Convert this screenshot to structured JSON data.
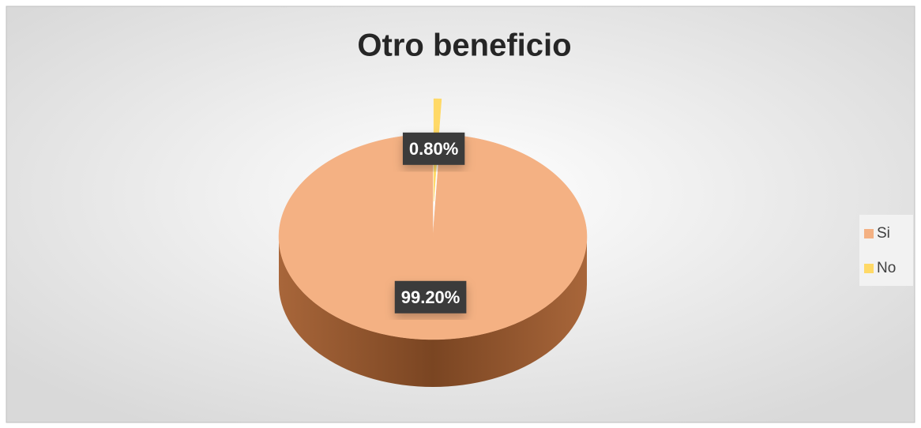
{
  "chart_data": {
    "type": "pie",
    "title": "Otro beneficio",
    "categories": [
      "Si",
      "No"
    ],
    "values": [
      99.2,
      0.8
    ],
    "value_labels": [
      "99.20%",
      "0.80%"
    ],
    "colors": [
      "#f4b183",
      "#ffd966"
    ],
    "legend": "right"
  }
}
